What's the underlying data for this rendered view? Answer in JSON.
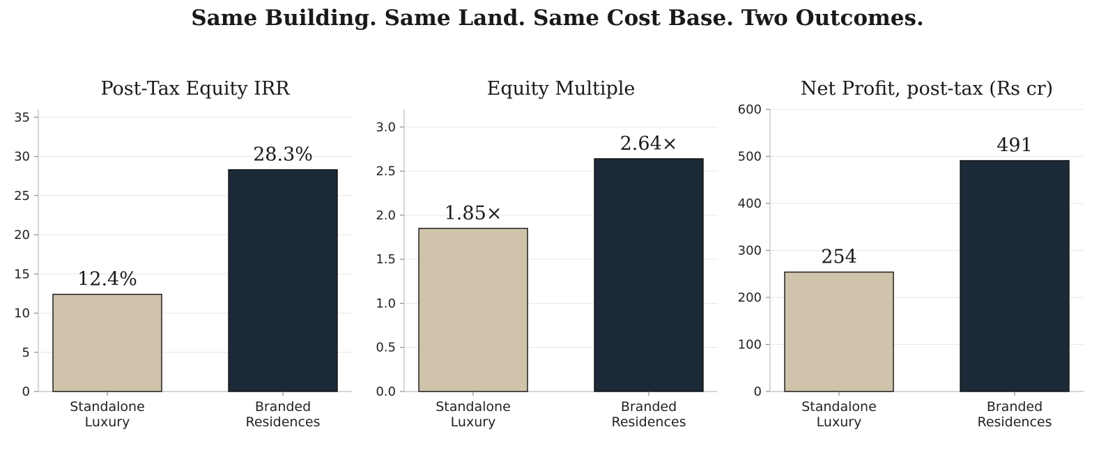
{
  "suptitle": "Same Building. Same Land. Same Cost Base. Two Outcomes.",
  "chart_data": [
    {
      "type": "bar",
      "title": "Post-Tax Equity IRR",
      "categories": [
        "Standalone\nLuxury",
        "Branded\nResidences"
      ],
      "values": [
        12.4,
        28.3
      ],
      "value_labels": [
        "12.4%",
        "28.3%"
      ],
      "colors": [
        "#d0c3ab",
        "#1c2a38"
      ],
      "ylim": [
        0,
        36
      ],
      "yticks": [
        0,
        5,
        10,
        15,
        20,
        25,
        30,
        35
      ],
      "ytick_labels": [
        "0",
        "5",
        "10",
        "15",
        "20",
        "25",
        "30",
        "35"
      ],
      "grid": true
    },
    {
      "type": "bar",
      "title": "Equity Multiple",
      "categories": [
        "Standalone\nLuxury",
        "Branded\nResidences"
      ],
      "values": [
        1.85,
        2.64
      ],
      "value_labels": [
        "1.85×",
        "2.64×"
      ],
      "colors": [
        "#d0c3ab",
        "#1c2a38"
      ],
      "ylim": [
        0,
        3.2
      ],
      "yticks": [
        0,
        0.5,
        1,
        1.5,
        2,
        2.5,
        3
      ],
      "ytick_labels": [
        "0.0",
        "0.5",
        "1.0",
        "1.5",
        "2.0",
        "2.5",
        "3.0"
      ],
      "grid": true
    },
    {
      "type": "bar",
      "title": "Net Profit, post-tax (Rs cr)",
      "categories": [
        "Standalone\nLuxury",
        "Branded\nResidences"
      ],
      "values": [
        254,
        491
      ],
      "value_labels": [
        "254",
        "491"
      ],
      "colors": [
        "#d0c3ab",
        "#1c2a38"
      ],
      "ylim": [
        0,
        600
      ],
      "yticks": [
        0,
        100,
        200,
        300,
        400,
        500,
        600
      ],
      "ytick_labels": [
        "0",
        "100",
        "200",
        "300",
        "400",
        "500",
        "600"
      ],
      "grid": true
    }
  ]
}
